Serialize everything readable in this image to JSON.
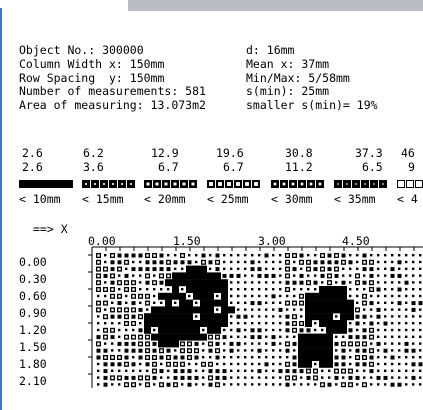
{
  "header": {
    "object_no": "Object No.: 300000",
    "col_width": "Column Width x: 150mm",
    "row_spacing": "Row Spacing  y: 150mm",
    "num_measurements": "Number of measurements: 581",
    "area": "Area of measuring: 13.073m2",
    "d": "d: 16mm",
    "mean_x": "Mean x: 37mm",
    "minmax": "Min/Max: 5/58mm",
    "s_min": "s(min): 25mm",
    "smaller_s": "smaller s(min)= 19%"
  },
  "value_columns": [
    {
      "top": "2.6",
      "bottom": "2.6"
    },
    {
      "top": "6.2",
      "bottom": "3.6"
    },
    {
      "top": "12.9",
      "bottom": "6.7"
    },
    {
      "top": "19.6",
      "bottom": "6.7"
    },
    {
      "top": "30.8",
      "bottom": "11.2"
    },
    {
      "top": "37.3",
      "bottom": "6.5"
    },
    {
      "top": "46",
      "bottom": "9"
    }
  ],
  "legend": [
    {
      "label": "< 10mm"
    },
    {
      "label": "< 15mm"
    },
    {
      "label": "< 20mm"
    },
    {
      "label": "< 25mm"
    },
    {
      "label": "< 30mm"
    },
    {
      "label": "< 35mm"
    },
    {
      "label": "< 4"
    }
  ],
  "axis": {
    "x_label": "==> X",
    "x_ticks": [
      "0.00",
      "1.50",
      "3.00",
      "4.50"
    ],
    "y_ticks": [
      "0.00",
      "0.30",
      "0.60",
      "0.90",
      "1.20",
      "1.50",
      "1.80",
      "2.10"
    ]
  }
}
